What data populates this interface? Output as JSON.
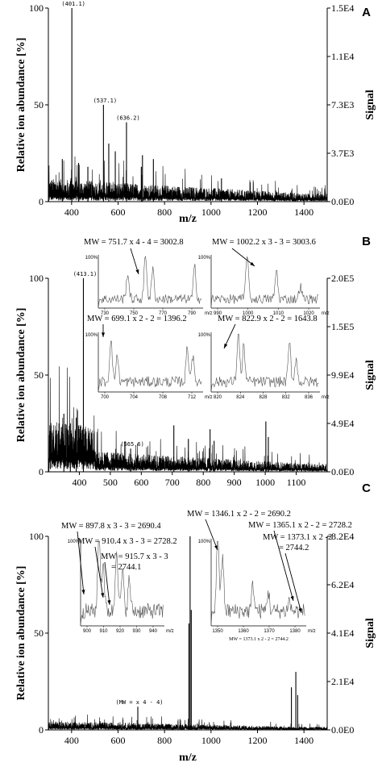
{
  "chart_data": [
    {
      "type": "line",
      "panel": "A",
      "xlabel": "m/z",
      "ylabel": "Relative ion abundance [%]",
      "y2label": "Signal",
      "xlim": [
        300,
        1500
      ],
      "ylim": [
        0,
        100
      ],
      "x_ticks": [
        "400",
        "600",
        "800",
        "1000",
        "1200",
        "1400"
      ],
      "y_ticks": [
        "0",
        "50",
        "100"
      ],
      "y2_ticks": [
        "0.0E0",
        "3.7E3",
        "7.3E3",
        "1.1E4",
        "1.5E4"
      ],
      "baseline_level": 8,
      "peaks": [
        {
          "x": 401.1,
          "y": 100,
          "label": "(401.1)"
        },
        {
          "x": 537.1,
          "y": 50,
          "label": "(537.1)"
        },
        {
          "x": 636.2,
          "y": 41,
          "label": "(636.2)"
        },
        {
          "x": 560,
          "y": 30
        },
        {
          "x": 588,
          "y": 26
        },
        {
          "x": 705,
          "y": 24
        },
        {
          "x": 752,
          "y": 22
        },
        {
          "x": 700,
          "y": 18
        },
        {
          "x": 1045,
          "y": 12
        },
        {
          "x": 360,
          "y": 22
        },
        {
          "x": 430,
          "y": 20
        },
        {
          "x": 470,
          "y": 18
        }
      ]
    },
    {
      "type": "line",
      "panel": "B",
      "xlabel": "",
      "ylabel": "Relative ion abundance [%]",
      "y2label": "Signal",
      "xlim": [
        300,
        1200
      ],
      "ylim": [
        0,
        100
      ],
      "x_ticks": [
        "400",
        "500",
        "600",
        "700",
        "800",
        "900",
        "1000",
        "1100"
      ],
      "y_ticks": [
        "0",
        "50",
        "100"
      ],
      "y2_ticks": [
        "0.0E0",
        "4.9E4",
        "9.9E4",
        "1.5E5",
        "2.0E5"
      ],
      "baseline_level": 8,
      "peaks": [
        {
          "x": 413.1,
          "y": 100,
          "label": "(413.1)"
        },
        {
          "x": 565.6,
          "y": 12,
          "label": "(565.6)"
        },
        {
          "x": 390,
          "y": 28
        },
        {
          "x": 371,
          "y": 25
        },
        {
          "x": 350,
          "y": 30
        },
        {
          "x": 705,
          "y": 24
        },
        {
          "x": 752,
          "y": 17
        },
        {
          "x": 822,
          "y": 22
        },
        {
          "x": 1002,
          "y": 26
        },
        {
          "x": 1010,
          "y": 18
        },
        {
          "x": 835,
          "y": 16
        }
      ],
      "annotations": [
        "MW = 751.7 x 4 - 4 = 3002.8",
        "MW = 1002.2 x 3 - 3 = 3003.6",
        "MW = 699.1 x 2 - 2 = 1396.2",
        "MW = 822.9 x 2 - 2 = 1643.8"
      ],
      "insets": [
        {
          "ticks": [
            "730",
            "750",
            "770",
            "790"
          ],
          "unit": "m/z",
          "ymax": "100%"
        },
        {
          "ticks": [
            "990",
            "1000",
            "1010",
            "1020"
          ],
          "unit": "m/z",
          "ymax": "100%"
        },
        {
          "ticks": [
            "700",
            "704",
            "708",
            "712"
          ],
          "unit": "m/z",
          "ymax": "100%"
        },
        {
          "ticks": [
            "820",
            "824",
            "828",
            "832",
            "836"
          ],
          "unit": "m/z",
          "ymax": "100%"
        }
      ]
    },
    {
      "type": "line",
      "panel": "C",
      "xlabel": "m/z",
      "ylabel": "Relative ion abundance [%]",
      "y2label": "Signal",
      "xlim": [
        300,
        1500
      ],
      "ylim": [
        0,
        100
      ],
      "x_ticks": [
        "400",
        "600",
        "800",
        "1000",
        "1200",
        "1400"
      ],
      "y_ticks": [
        "0",
        "50",
        "100"
      ],
      "y2_ticks": [
        "0.0E0",
        "2.1E4",
        "4.1E4",
        "6.2E4",
        "8.2E4"
      ],
      "baseline_level": 3,
      "peaks": [
        {
          "x": 910,
          "y": 100
        },
        {
          "x": 915,
          "y": 62
        },
        {
          "x": 905,
          "y": 55
        },
        {
          "x": 685,
          "y": 12,
          "label": "(MW = x 4 - 4)"
        },
        {
          "x": 1365,
          "y": 30
        },
        {
          "x": 1346,
          "y": 22
        },
        {
          "x": 1373,
          "y": 18
        }
      ],
      "annotations": [
        "MW = 897.8 x 3 - 3 = 2690.4",
        "MW = 910.4 x 3 - 3 = 2728.2",
        "MW = 915.7 x 3 - 3",
        "= 2744.1",
        "MW = 1346.1 x 2 - 2 = 2690.2",
        "MW = 1365.1 x 2 - 2 = 2728.2",
        "MW = 1373.1 x 2 -2",
        "= 2744.2"
      ],
      "insets": [
        {
          "ticks": [
            "900",
            "910",
            "920",
            "930",
            "940"
          ],
          "unit": "m/z",
          "ymax": "100%"
        },
        {
          "ticks": [
            "1350",
            "1360",
            "1370",
            "1380"
          ],
          "unit": "m/z",
          "ymax": "100%",
          "note": "MW = 1373.1 x 2 - 2 = 2744.2"
        }
      ]
    }
  ]
}
